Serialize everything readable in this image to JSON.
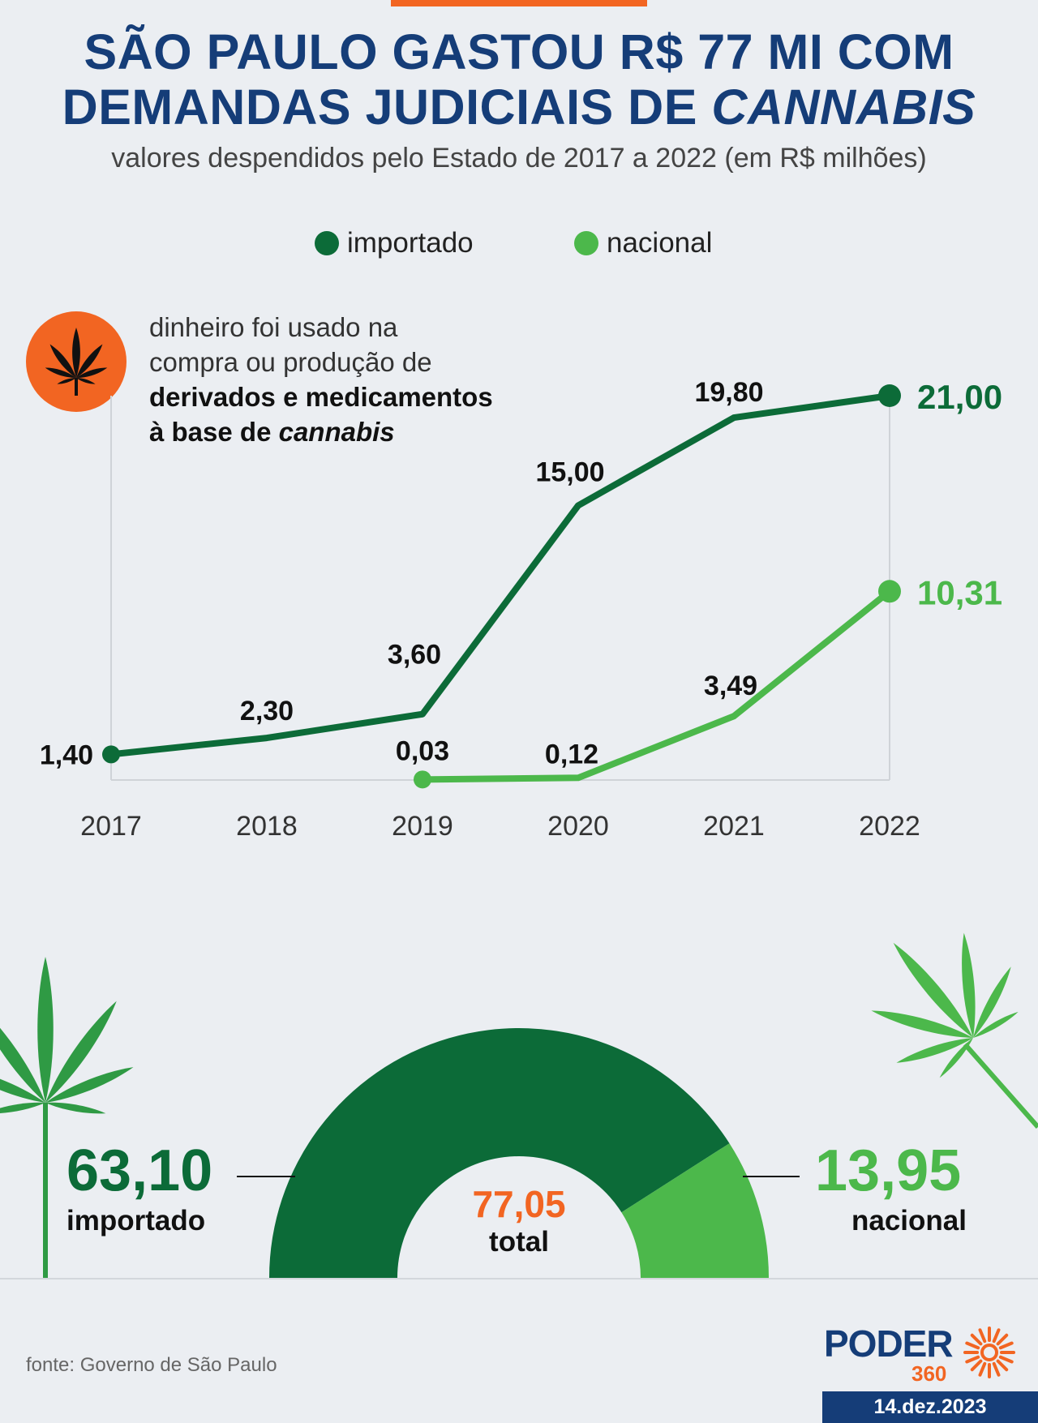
{
  "header": {
    "title_line1": "SÃO PAULO GASTOU R$ 77 MI COM",
    "title_line2_prefix": "DEMANDAS JUDICIAIS DE ",
    "title_line2_italic": "CANNABIS",
    "subtitle": "valores despendidos pelo Estado de 2017 a 2022 (em R$ milhões)"
  },
  "legend": {
    "importado": "importado",
    "nacional": "nacional"
  },
  "note": {
    "line1": "dinheiro foi usado na",
    "line2": "compra ou produção de",
    "line3": "derivados e medicamentos",
    "line4_prefix": "à base de ",
    "line4_italic": "cannabis",
    "icon": "cannabis-leaf-icon"
  },
  "colors": {
    "importado": "#0c6b38",
    "nacional": "#4cb84b",
    "accent": "#f26522",
    "title": "#153d78"
  },
  "chart_data": [
    {
      "type": "line",
      "x": [
        "2017",
        "2018",
        "2019",
        "2020",
        "2021",
        "2022"
      ],
      "ylim": [
        0,
        21
      ],
      "series": [
        {
          "name": "importado",
          "values": [
            1.4,
            2.3,
            3.6,
            15.0,
            19.8,
            21.0
          ],
          "labels": [
            "1,40",
            "2,30",
            "3,60",
            "15,00",
            "19,80",
            "21,00"
          ]
        },
        {
          "name": "nacional",
          "values": [
            null,
            null,
            0.03,
            0.12,
            3.49,
            10.31
          ],
          "labels": [
            "",
            "",
            "0,03",
            "0,12",
            "3,49",
            "10,31"
          ]
        }
      ]
    },
    {
      "type": "pie",
      "categories": [
        "importado",
        "nacional"
      ],
      "values": [
        63.1,
        13.95
      ],
      "labels": [
        "63,10",
        "13,95"
      ],
      "total_value": "77,05",
      "total_label": "total"
    }
  ],
  "footer": {
    "source": "fonte: Governo de São Paulo",
    "logo_main": "PODER",
    "logo_sub": "360",
    "date": "14.dez.2023"
  }
}
